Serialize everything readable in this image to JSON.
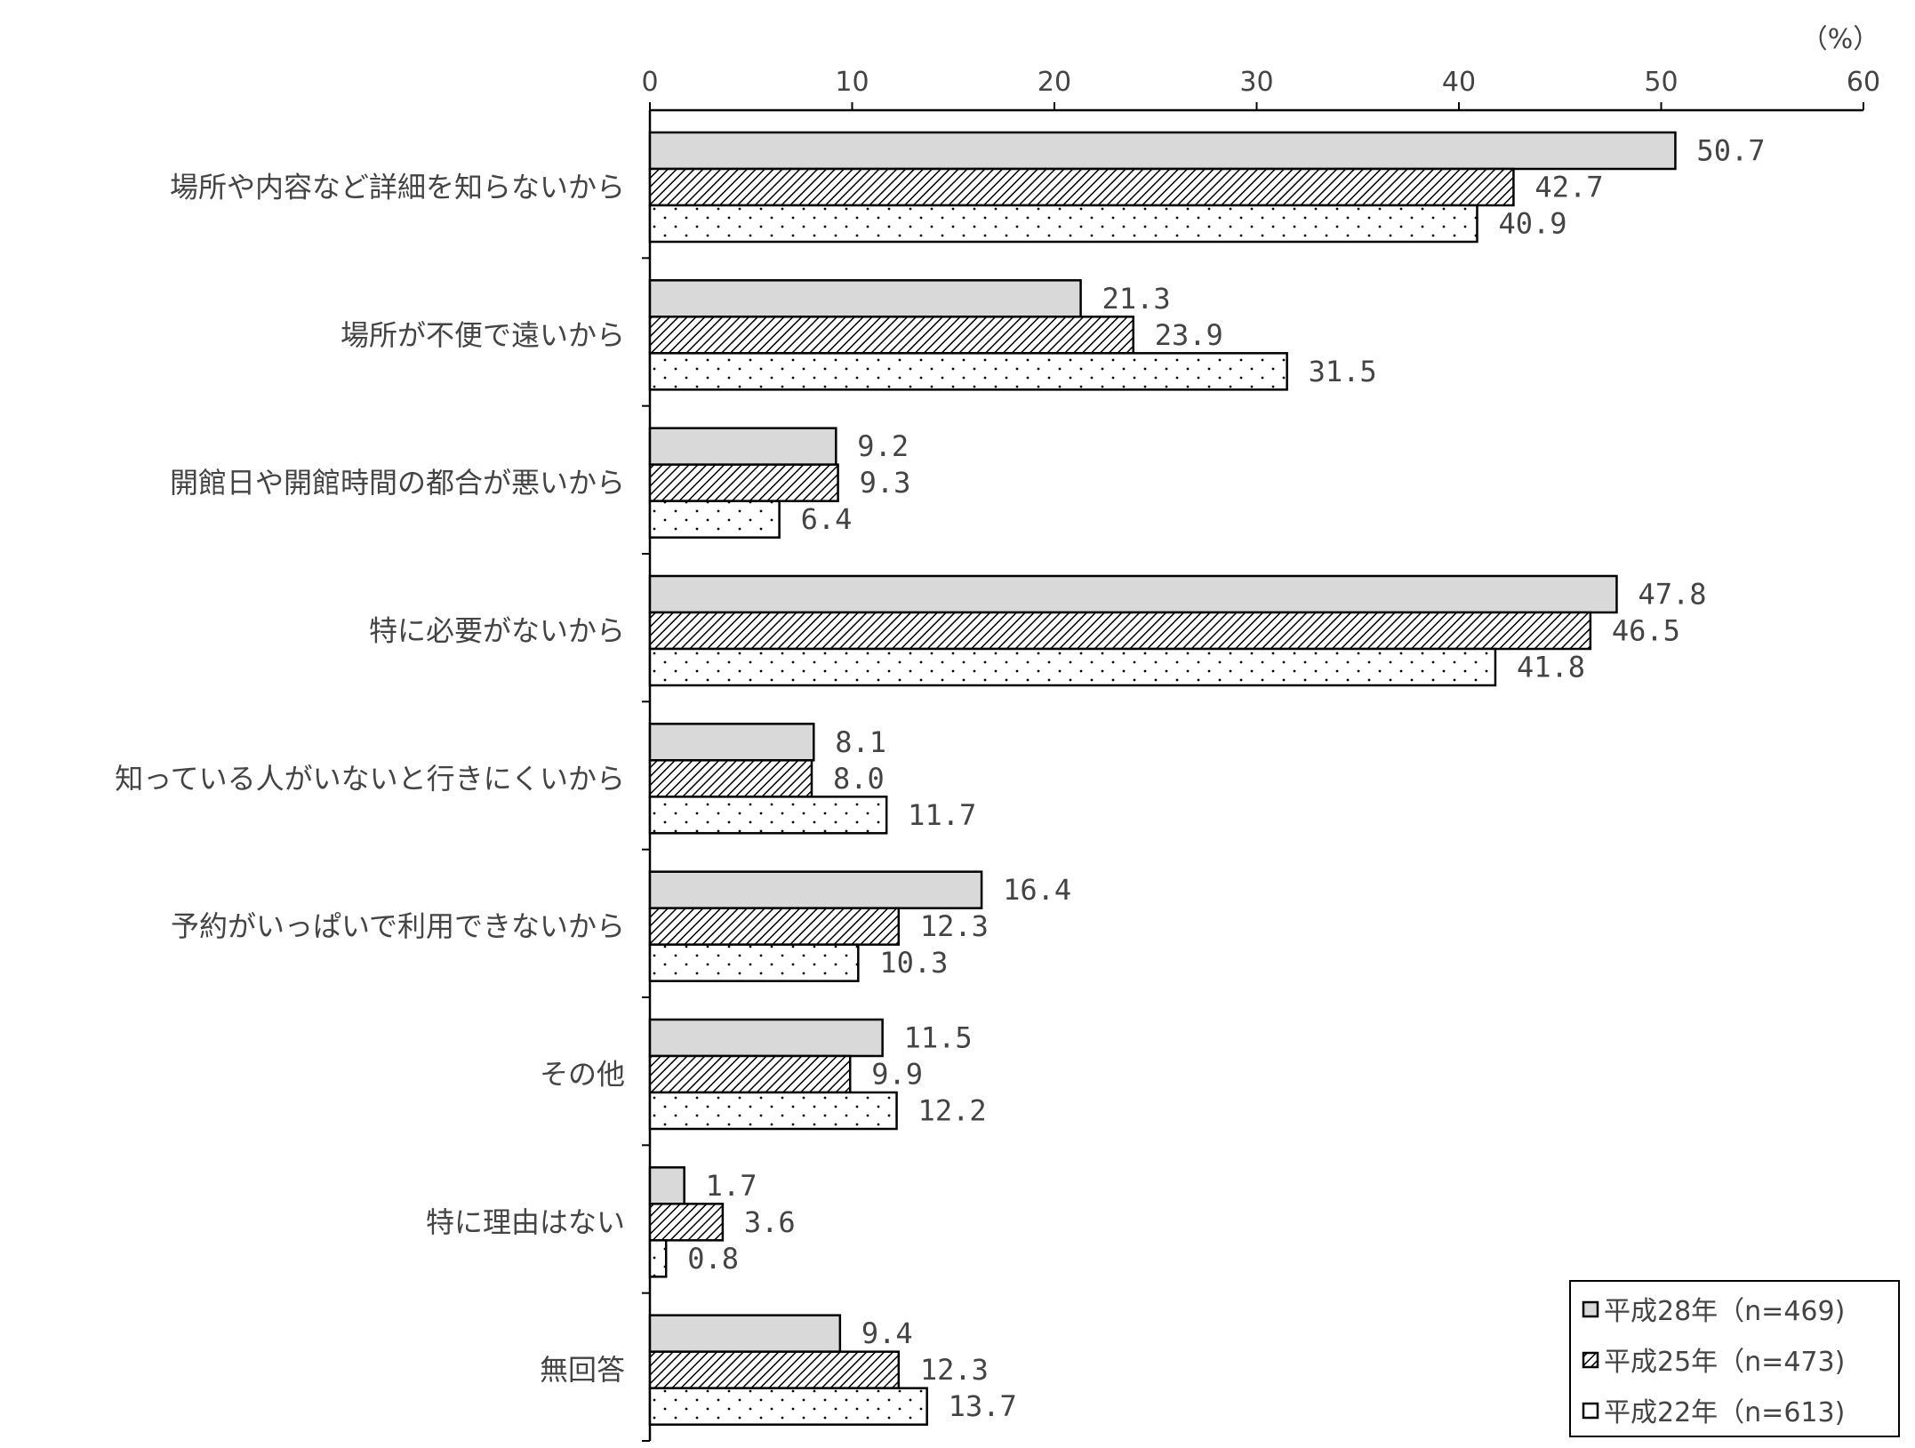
{
  "chart_data": {
    "type": "bar",
    "orientation": "horizontal",
    "unit_label": "（%）",
    "xlim": [
      0,
      60
    ],
    "xticks": [
      "0",
      "10",
      "20",
      "30",
      "40",
      "50",
      "60"
    ],
    "grid": false,
    "legend_position": "bottom-right",
    "categories": [
      "場所や内容など詳細を知らないから",
      "場所が不便で遠いから",
      "開館日や開館時間の都合が悪いから",
      "特に必要がないから",
      "知っている人がいないと行きにくいから",
      "予約がいっぱいで利用できないから",
      "その他",
      "特に理由はない",
      "無回答"
    ],
    "series": [
      {
        "name": "平成28年（n=469)",
        "pattern": "solid-gray",
        "values": [
          50.7,
          21.3,
          9.2,
          47.8,
          8.1,
          16.4,
          11.5,
          1.7,
          9.4
        ],
        "labels": [
          "50.7",
          "21.3",
          "9.2",
          "47.8",
          "8.1",
          "16.4",
          "11.5",
          "1.7",
          "9.4"
        ]
      },
      {
        "name": "平成25年（n=473)",
        "pattern": "diagonal-hatch",
        "values": [
          42.7,
          23.9,
          9.3,
          46.5,
          8.0,
          12.3,
          9.9,
          3.6,
          12.3
        ],
        "labels": [
          "42.7",
          "23.9",
          "9.3",
          "46.5",
          "8.0",
          "12.3",
          "9.9",
          "3.6",
          "12.3"
        ]
      },
      {
        "name": "平成22年（n=613)",
        "pattern": "dots",
        "values": [
          40.9,
          31.5,
          6.4,
          41.8,
          11.7,
          10.3,
          12.2,
          0.8,
          13.7
        ],
        "labels": [
          "40.9",
          "31.5",
          "6.4",
          "41.8",
          "11.7",
          "10.3",
          "12.2",
          "0.8",
          "13.7"
        ]
      }
    ],
    "colors": {
      "bar_fill_gray": "#d9d9d9",
      "stroke": "#000000",
      "text": "#444444"
    }
  }
}
